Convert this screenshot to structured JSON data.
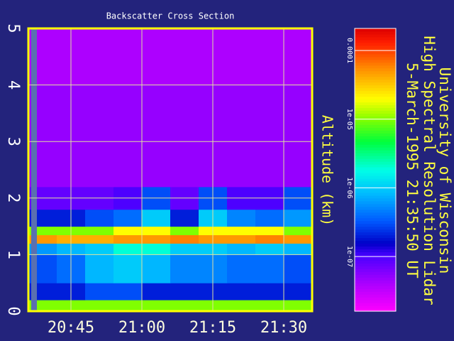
{
  "chart_data": {
    "type": "heatmap",
    "title": "Backscatter Cross Section",
    "ylabel": "Altitude (km)",
    "x_edges": [
      20.6,
      20.7,
      20.8,
      20.9,
      21.0,
      21.1,
      21.2,
      21.3,
      21.4,
      21.5,
      21.6
    ],
    "y_edges": [
      0,
      0.2,
      0.5,
      1.0,
      1.2,
      1.35,
      1.5,
      1.8,
      2.2,
      3,
      4,
      5
    ],
    "values": [
      [
        1e-05,
        1e-05,
        1e-05,
        1e-05,
        1e-05,
        1e-05,
        1e-05,
        1e-05,
        1e-05,
        1e-05
      ],
      [
        2e-07,
        2e-07,
        3e-07,
        3e-07,
        2e-07,
        2e-07,
        2e-07,
        2e-07,
        2e-07,
        2e-07
      ],
      [
        3e-07,
        4e-07,
        8e-07,
        1e-06,
        8e-07,
        5e-07,
        5e-07,
        4e-07,
        4e-07,
        3e-07
      ],
      [
        6e-07,
        8e-07,
        1e-06,
        2e-06,
        2e-06,
        1e-06,
        1e-06,
        8e-07,
        1e-06,
        8e-07
      ],
      [
        5e-05,
        4e-05,
        4e-05,
        5e-05,
        5e-05,
        6e-05,
        5e-05,
        5e-05,
        6e-05,
        5e-05
      ],
      [
        1e-05,
        1e-05,
        1e-05,
        2e-05,
        2e-05,
        1e-05,
        2e-05,
        2e-05,
        2e-05,
        1e-05
      ],
      [
        2e-07,
        2e-07,
        3e-07,
        4e-07,
        1e-06,
        2e-07,
        1e-06,
        5e-07,
        4e-07,
        6e-07
      ],
      [
        8e-08,
        8e-08,
        8e-08,
        1e-07,
        3e-07,
        8e-08,
        3e-07,
        1e-07,
        1e-07,
        3e-07
      ],
      [
        5e-08,
        5e-08,
        5e-08,
        5e-08,
        5e-08,
        5e-08,
        5e-08,
        5e-08,
        5e-08,
        5e-08
      ],
      [
        5e-08,
        5e-08,
        5e-08,
        5e-08,
        5e-08,
        5e-08,
        5e-08,
        5e-08,
        5e-08,
        5e-08
      ],
      [
        4e-08,
        4e-08,
        4e-08,
        4e-08,
        4e-08,
        4e-08,
        4e-08,
        4e-08,
        4e-08,
        4e-08
      ]
    ],
    "xlim": [
      20.6,
      21.6
    ],
    "ylim": [
      0,
      5
    ],
    "xticks": [
      {
        "value": 20.75,
        "label": "20:45"
      },
      {
        "value": 21.0,
        "label": "21:00"
      },
      {
        "value": 21.25,
        "label": "21:15"
      },
      {
        "value": 21.5,
        "label": "21:30"
      }
    ],
    "yticks": [
      0,
      1,
      2,
      3,
      4,
      5
    ],
    "grid": true,
    "colorbar": {
      "log_scale": true,
      "clim": [
        1.6e-08,
        0.00021
      ],
      "ticks": [
        {
          "value": 0.0001,
          "label": "0.0001"
        },
        {
          "value": 1e-05,
          "label": "1e-05"
        },
        {
          "value": 1e-06,
          "label": "1e-06"
        },
        {
          "value": 1e-07,
          "label": "1e-07"
        }
      ]
    },
    "side_text": [
      "University of Wisconsin",
      "High Spectral Resolution Lidar",
      "5-March-1995 21:35:50 UT"
    ]
  }
}
